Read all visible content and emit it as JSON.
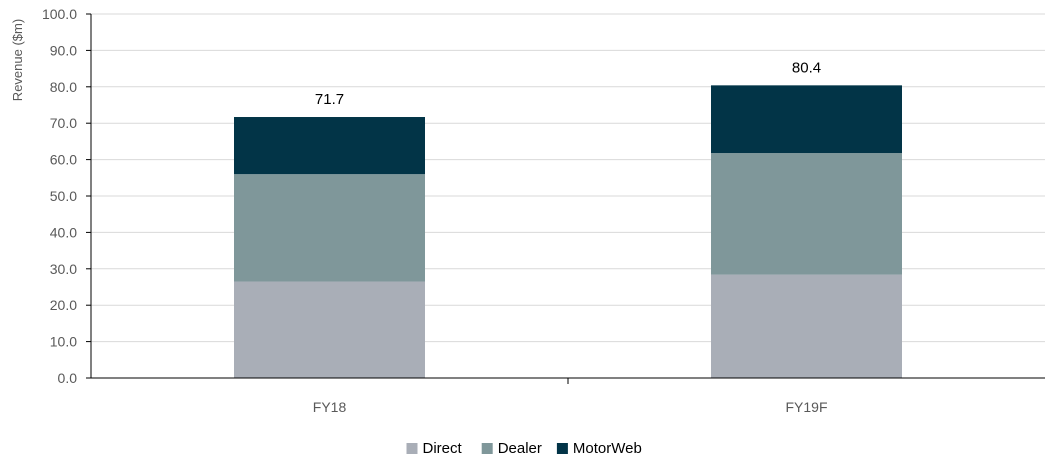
{
  "chart_data": {
    "type": "bar",
    "stacked": true,
    "categories": [
      "FY18",
      "FY19F"
    ],
    "series": [
      {
        "name": "Direct",
        "color": "#a9aeb7",
        "values": [
          26.5,
          28.4
        ]
      },
      {
        "name": "Dealer",
        "color": "#7f979a",
        "values": [
          29.5,
          33.4
        ]
      },
      {
        "name": "MotorWeb",
        "color": "#023447",
        "values": [
          15.7,
          18.6
        ]
      }
    ],
    "totals": [
      "71.7",
      "80.4"
    ],
    "ylabel": "Revenue ($m)",
    "xlabel": "",
    "ylim": [
      0,
      100
    ],
    "yticks": [
      "0.0",
      "10.0",
      "20.0",
      "30.0",
      "40.0",
      "50.0",
      "60.0",
      "70.0",
      "80.0",
      "90.0",
      "100.0"
    ],
    "grid": true,
    "legend_position": "bottom"
  }
}
